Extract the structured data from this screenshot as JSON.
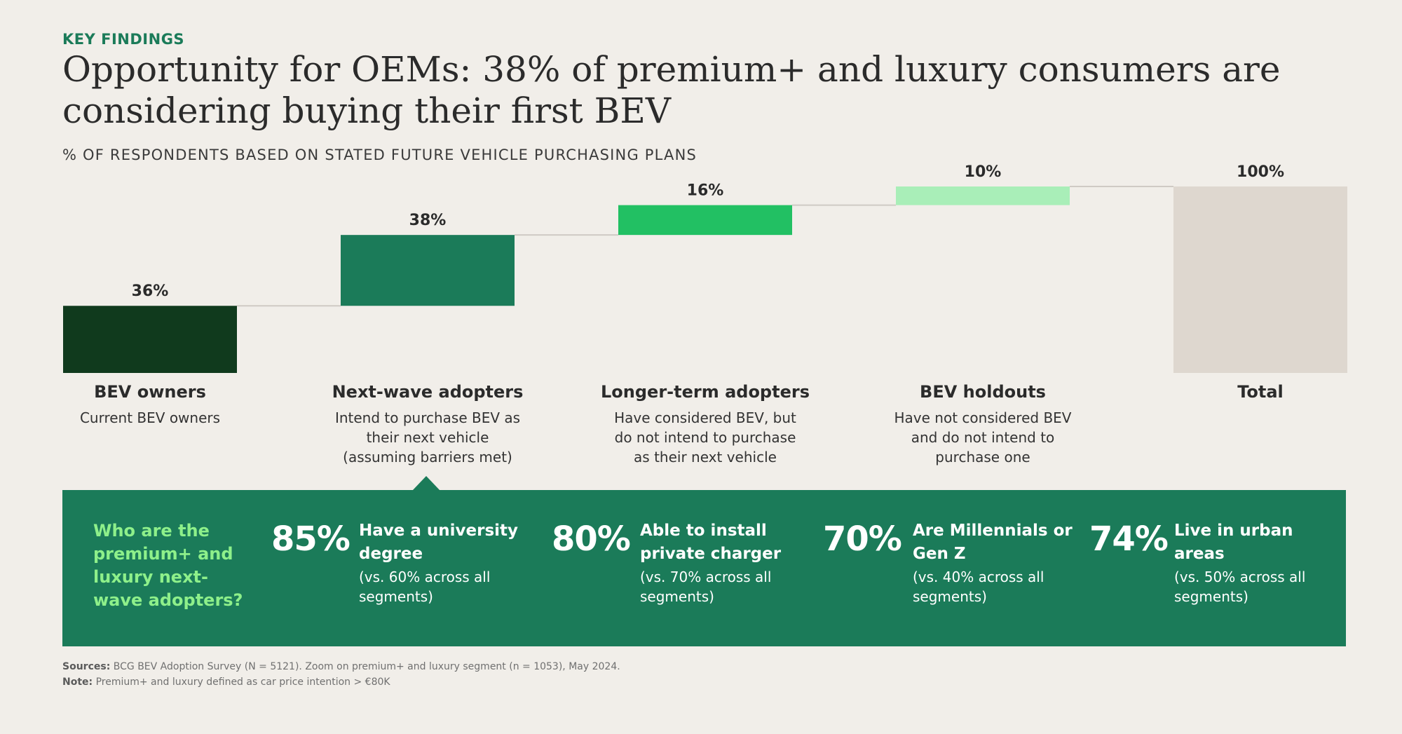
{
  "header": {
    "kicker": "KEY FINDINGS",
    "title": "Opportunity for OEMs: 38% of premium+ and luxury consumers are considering buying their first BEV",
    "subtitle": "% OF RESPONDENTS BASED ON STATED FUTURE VEHICLE PURCHASING PLANS"
  },
  "chart_data": {
    "type": "waterfall",
    "title": "% OF RESPONDENTS BASED ON STATED FUTURE VEHICLE PURCHASING PLANS",
    "ylim": [
      0,
      100
    ],
    "categories": [
      "BEV owners",
      "Next-wave adopters",
      "Longer-term adopters",
      "BEV holdouts",
      "Total"
    ],
    "values": [
      36,
      38,
      16,
      10,
      100
    ],
    "value_labels": [
      "36%",
      "38%",
      "16%",
      "10%",
      "100%"
    ],
    "descriptions": [
      "Current BEV owners",
      "Intend to purchase BEV as their next vehicle (assuming barriers met)",
      "Have considered BEV, but do not intend to purchase as their next vehicle",
      "Have not considered BEV and do not intend to purchase one",
      ""
    ],
    "colors": [
      "#103a1d",
      "#1b7b59",
      "#22c063",
      "#a9eeb8",
      "#ded7cf"
    ],
    "connector_color": "#cfcac4"
  },
  "panel": {
    "question": "Who are the premium+ and luxury next-wave adopters?",
    "stats": [
      {
        "value": "85%",
        "headline": "Have a university degree",
        "comparison": "(vs. 60% across all segments)"
      },
      {
        "value": "80%",
        "headline": "Able to install private charger",
        "comparison": "(vs. 70% across all segments)"
      },
      {
        "value": "70%",
        "headline": "Are Millennials or Gen Z",
        "comparison": "(vs. 40% across all segments)"
      },
      {
        "value": "74%",
        "headline": "Live in urban areas",
        "comparison": "(vs. 50% across all segments)"
      }
    ]
  },
  "footer": {
    "sources_label": "Sources:",
    "sources_text": "BCG BEV Adoption Survey (N = 5121). Zoom on premium+ and luxury segment (n = 1053), May 2024.",
    "note_label": "Note:",
    "note_text": "Premium+ and luxury defined as car price intention > €80K"
  }
}
